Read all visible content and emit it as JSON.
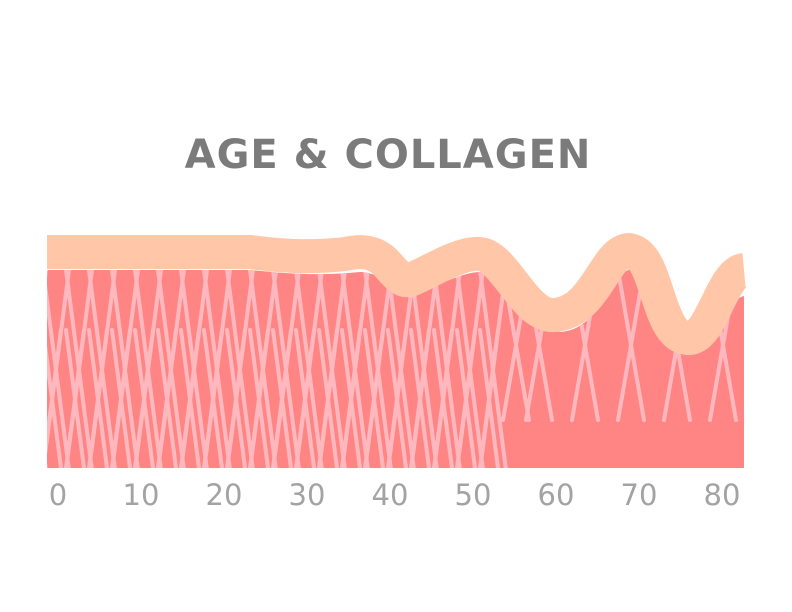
{
  "title": "AGE & COLLAGEN",
  "axis": {
    "ticks": [
      "0",
      "10",
      "20",
      "30",
      "40",
      "50",
      "60",
      "70",
      "80"
    ]
  },
  "colors": {
    "dermis": "#ff8585",
    "epidermis": "#ffc7a8",
    "collagen_fibers": "#ffb8bd",
    "title": "#7b7b7b",
    "ticks": "#a3a3a3"
  }
}
